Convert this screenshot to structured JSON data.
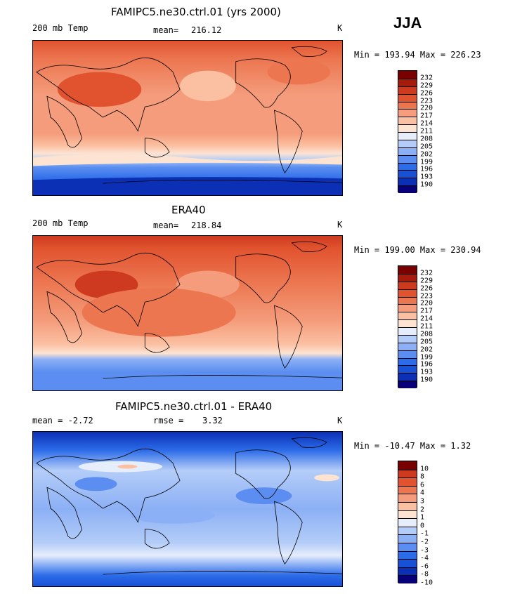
{
  "season": "JJA",
  "colors": {
    "warm_scale": [
      "#08007a",
      "#0b2fb5",
      "#1851d6",
      "#2c6ce8",
      "#5b8ef0",
      "#8cb0f5",
      "#b4cdf8",
      "#e6edfb",
      "#fde3d2",
      "#fbc0a2",
      "#f49c7b",
      "#ec7650",
      "#e1532f",
      "#cd3a1f",
      "#a61b0b",
      "#7a0000"
    ],
    "diff_scale": [
      "#08007a",
      "#0b2fb5",
      "#1851d6",
      "#2c6ce8",
      "#5b8ef0",
      "#8cb0f5",
      "#b4cdf8",
      "#e6edfb",
      "#fde3d2",
      "#fbc0a2",
      "#f49c7b",
      "#ec7650",
      "#e1532f",
      "#cd3a1f",
      "#7a0000"
    ]
  },
  "panels": [
    {
      "title": "FAMIPC5.ne30.ctrl.01 (yrs 2000)",
      "field_label": "200 mb Temp",
      "mean_label": "mean=",
      "mean_value": "216.12",
      "units": "K",
      "minmax": "Min = 193.94 Max = 226.23",
      "scale": "warm"
    },
    {
      "title": "ERA40",
      "field_label": "200 mb Temp",
      "mean_label": "mean=",
      "mean_value": "218.84",
      "units": "K",
      "minmax": "Min = 199.00 Max = 230.94",
      "scale": "warm"
    },
    {
      "title": "FAMIPC5.ne30.ctrl.01 - ERA40",
      "field_label": "mean =   -2.72",
      "mean_label": "rmse =",
      "mean_value": "3.32",
      "units": "K",
      "minmax": "Min = -10.47 Max =    1.32",
      "scale": "diff"
    }
  ],
  "warm_labels": [
    "232",
    "229",
    "226",
    "223",
    "220",
    "217",
    "214",
    "211",
    "208",
    "205",
    "202",
    "199",
    "196",
    "193",
    "190"
  ],
  "diff_labels": [
    "10",
    "8",
    "6",
    "4",
    "3",
    "2",
    "1",
    "0",
    "-1",
    "-2",
    "-3",
    "-4",
    "-6",
    "-8",
    "-10"
  ]
}
